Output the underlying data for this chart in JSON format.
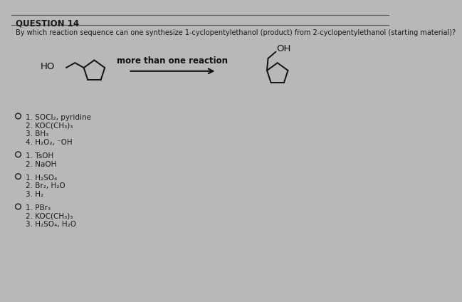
{
  "title": "QUESTION 14",
  "question": "By which reaction sequence can one synthesize 1-cyclopentylethanol (product) from 2-cyclopentylethanol (starting material)?",
  "arrow_label": "more than one reaction",
  "options": [
    {
      "lines": [
        "1. SOCl₂, pyridine",
        "2. KOC(CH₃)₃",
        "3. BH₃",
        "4. H₂O₂, ⁻OH"
      ]
    },
    {
      "lines": [
        "1. TsOH",
        "2. NaOH"
      ]
    },
    {
      "lines": [
        "1. H₂SO₄",
        "2. Br₂, H₂O",
        "3. H₂"
      ]
    },
    {
      "lines": [
        "1. PBr₃",
        "2. KOC(CH₃)₃",
        "3. H₂SO₄, H₂O"
      ]
    }
  ],
  "bg_color": "#b8b8b8",
  "text_color": "#1a1a1a",
  "line_color": "#555555",
  "mol_color": "#111111",
  "font_size_title": 8.5,
  "font_size_question": 7.0,
  "font_size_option": 7.5,
  "font_size_arrow_label": 8.5,
  "font_size_ho": 9.5,
  "font_size_oh": 9.5
}
